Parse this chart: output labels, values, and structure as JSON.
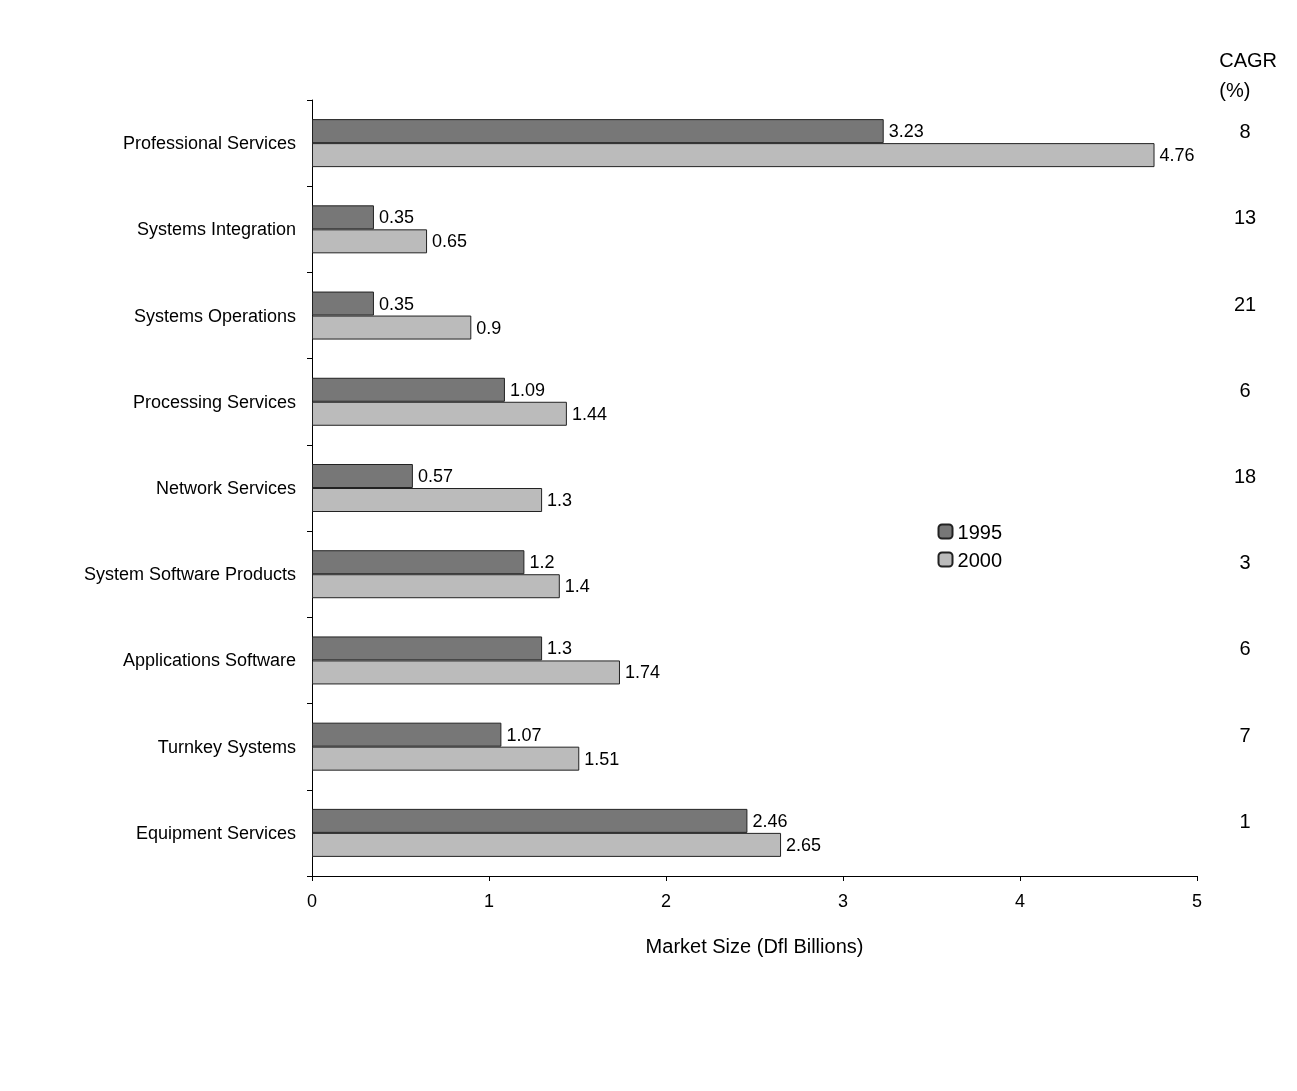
{
  "chart_data": {
    "type": "bar",
    "orientation": "horizontal",
    "xlabel": "Market Size (Dfl Billions)",
    "categories": [
      "Professional Services",
      "Systems Integration",
      "Systems Operations",
      "Processing Services",
      "Network Services",
      "System Software Products",
      "Applications Software",
      "Turnkey Systems",
      "Equipment Services"
    ],
    "series": [
      {
        "name": "1995",
        "color": "#777777",
        "values": [
          3.23,
          0.35,
          0.35,
          1.09,
          0.57,
          1.2,
          1.3,
          1.07,
          2.46
        ]
      },
      {
        "name": "2000",
        "color": "#bbbbbb",
        "values": [
          4.76,
          0.65,
          0.9,
          1.44,
          1.3,
          1.4,
          1.74,
          1.51,
          2.65
        ]
      }
    ],
    "xlim": [
      0,
      5
    ],
    "xticks": [
      0,
      1,
      2,
      3,
      4,
      5
    ],
    "data_labels": true,
    "legend": "right",
    "grid": false,
    "annotations": [
      "CAGR\n(%)",
      "8",
      "13",
      "21",
      "6",
      "18",
      "3",
      "6",
      "7",
      "1"
    ]
  }
}
